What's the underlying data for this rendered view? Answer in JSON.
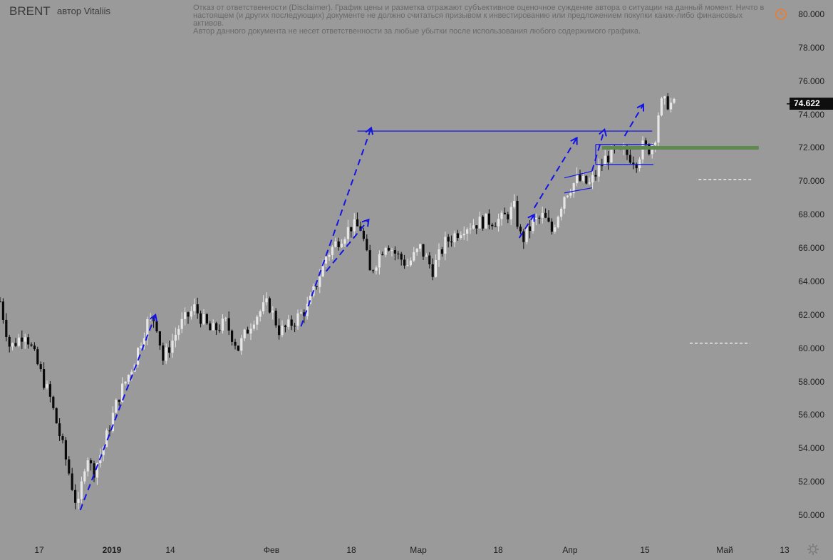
{
  "header": {
    "symbol": "BRENT",
    "author": "автор Vitaliis"
  },
  "disclaimer": [
    "Отказ от ответственности (Disclaimer). График цены и разметка отражают субъективное оценочное суждение автора о ситуации на данный момент. Ничто в настоящем (и других последующих) документе не должно считаться призывом к инвестированию или предложением покупки каких-либо финансовых активов.",
    "Автор данного документа не несет ответственности за любые убытки после использования любого содержимого графика."
  ],
  "price_axis": {
    "labels": [
      "80.000",
      "78.000",
      "76.000",
      "74.000",
      "72.000",
      "70.000",
      "68.000",
      "66.000",
      "64.000",
      "62.000",
      "60.000",
      "58.000",
      "56.000",
      "54.000",
      "52.000",
      "50.000"
    ],
    "last_price": "74.622"
  },
  "time_axis": {
    "labels": [
      {
        "text": "17",
        "bold": false
      },
      {
        "text": "2019",
        "bold": true
      },
      {
        "text": "14",
        "bold": false
      },
      {
        "text": "Фев",
        "bold": false
      },
      {
        "text": "18",
        "bold": false
      },
      {
        "text": "Мар",
        "bold": false
      },
      {
        "text": "18",
        "bold": false
      },
      {
        "text": "Апр",
        "bold": false
      },
      {
        "text": "15",
        "bold": false
      },
      {
        "text": "Май",
        "bold": false
      },
      {
        "text": "13",
        "bold": false
      }
    ]
  },
  "icons": {
    "alert": "alert-clock-icon",
    "settings": "gear-icon"
  },
  "colors": {
    "background": "#9a9a9a",
    "up_candle": "#e6e6e6",
    "down_candle": "#0a0a0a",
    "projection_line": "#1414e6",
    "zone": "#5f8a4f",
    "alert_icon": "#f07b2a"
  },
  "chart_data": {
    "type": "candlestick",
    "ylim": [
      49.3,
      80.7
    ],
    "x": [
      "17",
      "2019",
      "14",
      "Фев",
      "18",
      "Мар",
      "18",
      "Апр",
      "15",
      "Май",
      "13"
    ],
    "path_anchors": [
      [
        0,
        62.8
      ],
      [
        0.8,
        60.0
      ],
      [
        2.0,
        61.0
      ],
      [
        2.6,
        59.8
      ],
      [
        4.0,
        57.0
      ],
      [
        5.2,
        53.5
      ],
      [
        6.2,
        50.3
      ],
      [
        6.9,
        53.8
      ],
      [
        7.4,
        52.5
      ],
      [
        8.3,
        54.2
      ],
      [
        9.4,
        57.0
      ],
      [
        10.6,
        59.0
      ],
      [
        11.7,
        61.5
      ],
      [
        12.4,
        61.8
      ],
      [
        13.0,
        59.3
      ],
      [
        14.3,
        61.3
      ],
      [
        15.5,
        62.4
      ],
      [
        16.8,
        61.0
      ],
      [
        18.0,
        61.5
      ],
      [
        19.0,
        60.0
      ],
      [
        20.2,
        61.8
      ],
      [
        21.4,
        62.7
      ],
      [
        22.3,
        61.0
      ],
      [
        23.0,
        61.3
      ],
      [
        24.6,
        62.5
      ],
      [
        26.0,
        65.5
      ],
      [
        27.0,
        66.5
      ],
      [
        28.0,
        67.3
      ],
      [
        28.8,
        67.2
      ],
      [
        29.5,
        64.5
      ],
      [
        30.8,
        66.4
      ],
      [
        31.6,
        65.6
      ],
      [
        32.5,
        65.0
      ],
      [
        33.5,
        66.0
      ],
      [
        34.5,
        64.7
      ],
      [
        35.5,
        66.3
      ],
      [
        37.0,
        67.3
      ],
      [
        38.5,
        67.6
      ],
      [
        40.0,
        67.7
      ],
      [
        41.0,
        68.4
      ],
      [
        41.6,
        66.4
      ],
      [
        42.5,
        67.5
      ],
      [
        43.3,
        67.9
      ],
      [
        44.0,
        67.0
      ],
      [
        45.0,
        69.2
      ],
      [
        46.0,
        70.1
      ],
      [
        47.0,
        69.8
      ],
      [
        48.3,
        71.4
      ],
      [
        49.0,
        71.7
      ],
      [
        50.0,
        71.6
      ],
      [
        50.8,
        71.2
      ],
      [
        51.2,
        72.1
      ],
      [
        51.7,
        71.9
      ],
      [
        52.2,
        72.5
      ],
      [
        52.6,
        74.6
      ],
      [
        53.3,
        74.7
      ],
      [
        53.9,
        74.5
      ]
    ],
    "annotations": {
      "resistance_line": {
        "from_x": 28.5,
        "to_x": 52.0,
        "y": 73.0
      },
      "green_zone": {
        "from_x": 48.0,
        "to_x": 60.5,
        "y": 72.0
      },
      "white_dashed_levels": [
        {
          "from_x": 55.7,
          "to_x": 59.9,
          "y": 70.1
        },
        {
          "from_x": 55.0,
          "to_x": 59.8,
          "y": 60.3
        }
      ],
      "flag_channel": {
        "upper": [
          [
            45.0,
            70.2
          ],
          [
            47.2,
            70.6
          ]
        ],
        "lower": [
          [
            45.0,
            69.3
          ],
          [
            47.2,
            69.6
          ]
        ]
      },
      "range_box": {
        "from_x": 47.5,
        "to_x": 52.1,
        "top": 72.2,
        "bottom": 71.0
      },
      "projection_arrows": [
        {
          "from": [
            6.4,
            50.3
          ],
          "to": [
            12.4,
            62.0
          ]
        },
        {
          "from": [
            24.0,
            61.3
          ],
          "to": [
            29.6,
            73.2
          ]
        },
        {
          "from": [
            26.0,
            64.6
          ],
          "to": [
            29.4,
            67.7
          ]
        },
        {
          "from": [
            41.4,
            66.6
          ],
          "to": [
            42.6,
            68.0
          ]
        },
        {
          "from": [
            42.6,
            68.4
          ],
          "to": [
            46.0,
            72.6
          ]
        },
        {
          "from": [
            47.2,
            70.6
          ],
          "to": [
            48.2,
            73.1
          ]
        },
        {
          "from": [
            49.8,
            72.7
          ],
          "to": [
            51.3,
            74.6
          ]
        }
      ]
    }
  }
}
